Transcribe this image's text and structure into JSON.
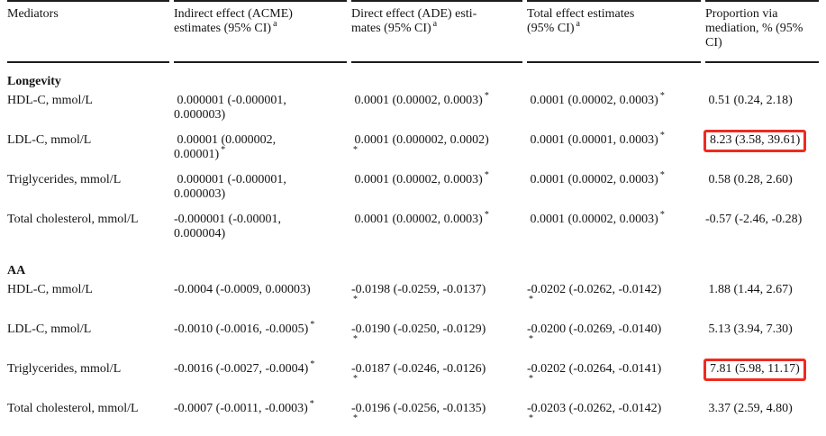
{
  "table": {
    "significance_marker": "*",
    "highlight_color": "#ee2b1f",
    "columns": [
      {
        "key": "mediators",
        "label": "Mediators",
        "footnote": ""
      },
      {
        "key": "indirect-effect",
        "label": "Indirect effect (ACME)\nestimates (95% CI)",
        "footnote": "a"
      },
      {
        "key": "direct-effect",
        "label": "Direct effect (ADE) esti-\nmates (95% CI)",
        "footnote": "a"
      },
      {
        "key": "total-effect",
        "label": "Total effect estimates\n(95% CI)",
        "footnote": "a"
      },
      {
        "key": "proportion",
        "label": "Proportion via\nmediation, % (95%\nCI)",
        "footnote": ""
      }
    ],
    "cell_keys": [
      "acme",
      "ade",
      "total",
      "proportion"
    ],
    "sections": [
      {
        "header": "Longevity",
        "rows": [
          {
            "mediator": "HDL-C, mmol/L",
            "cells": [
              {
                "text": " 0.000001 (-0.000001,\n0.000003)",
                "star": false,
                "star_wrapped": false,
                "highlighted": false
              },
              {
                "text": " 0.0001 (0.00002, 0.0003)",
                "star": true,
                "star_wrapped": false,
                "highlighted": false
              },
              {
                "text": " 0.0001 (0.00002, 0.0003)",
                "star": true,
                "star_wrapped": false,
                "highlighted": false
              },
              {
                "text": " 0.51 (0.24, 2.18)",
                "star": false,
                "star_wrapped": false,
                "highlighted": false
              }
            ]
          },
          {
            "mediator": "LDL-C, mmol/L",
            "cells": [
              {
                "text": " 0.00001 (0.000002,\n0.00001)",
                "star": true,
                "star_wrapped": false,
                "highlighted": false
              },
              {
                "text": " 0.0001 (0.000002, 0.0002)",
                "star": true,
                "star_wrapped": true,
                "highlighted": false
              },
              {
                "text": " 0.0001 (0.00001, 0.0003)",
                "star": true,
                "star_wrapped": false,
                "highlighted": false
              },
              {
                "text": "8.23 (3.58, 39.61)",
                "star": false,
                "star_wrapped": false,
                "highlighted": true
              }
            ]
          },
          {
            "mediator": "Triglycerides, mmol/L",
            "cells": [
              {
                "text": " 0.000001 (-0.000001,\n0.000003)",
                "star": false,
                "star_wrapped": false,
                "highlighted": false
              },
              {
                "text": " 0.0001 (0.00002, 0.0003)",
                "star": true,
                "star_wrapped": false,
                "highlighted": false
              },
              {
                "text": " 0.0001 (0.00002, 0.0003)",
                "star": true,
                "star_wrapped": false,
                "highlighted": false
              },
              {
                "text": " 0.58 (0.28, 2.60)",
                "star": false,
                "star_wrapped": false,
                "highlighted": false
              }
            ]
          },
          {
            "mediator": "Total cholesterol, mmol/L",
            "cells": [
              {
                "text": "-0.000001 (-0.00001,\n0.000004)",
                "star": false,
                "star_wrapped": false,
                "highlighted": false
              },
              {
                "text": " 0.0001 (0.00002, 0.0003)",
                "star": true,
                "star_wrapped": false,
                "highlighted": false
              },
              {
                "text": " 0.0001 (0.00002, 0.0003)",
                "star": true,
                "star_wrapped": false,
                "highlighted": false
              },
              {
                "text": "-0.57 (-2.46, -0.28)",
                "star": false,
                "star_wrapped": false,
                "highlighted": false
              }
            ]
          }
        ]
      },
      {
        "header": "AA",
        "rows": [
          {
            "mediator": "HDL-C, mmol/L",
            "cells": [
              {
                "text": "-0.0004 (-0.0009, 0.00003)",
                "star": false,
                "star_wrapped": false,
                "highlighted": false
              },
              {
                "text": "-0.0198 (-0.0259, -0.0137)",
                "star": true,
                "star_wrapped": true,
                "highlighted": false
              },
              {
                "text": "-0.0202 (-0.0262, -0.0142)",
                "star": true,
                "star_wrapped": true,
                "highlighted": false
              },
              {
                "text": " 1.88 (1.44, 2.67)",
                "star": false,
                "star_wrapped": false,
                "highlighted": false
              }
            ]
          },
          {
            "mediator": "LDL-C, mmol/L",
            "cells": [
              {
                "text": "-0.0010 (-0.0016, -0.0005)",
                "star": true,
                "star_wrapped": false,
                "highlighted": false
              },
              {
                "text": "-0.0190 (-0.0250, -0.0129)",
                "star": true,
                "star_wrapped": true,
                "highlighted": false
              },
              {
                "text": "-0.0200 (-0.0269, -0.0140)",
                "star": true,
                "star_wrapped": true,
                "highlighted": false
              },
              {
                "text": " 5.13 (3.94, 7.30)",
                "star": false,
                "star_wrapped": false,
                "highlighted": false
              }
            ]
          },
          {
            "mediator": "Triglycerides, mmol/L",
            "cells": [
              {
                "text": "-0.0016 (-0.0027, -0.0004)",
                "star": true,
                "star_wrapped": false,
                "highlighted": false
              },
              {
                "text": "-0.0187 (-0.0246, -0.0126)",
                "star": true,
                "star_wrapped": true,
                "highlighted": false
              },
              {
                "text": "-0.0202 (-0.0264, -0.0141)",
                "star": true,
                "star_wrapped": true,
                "highlighted": false
              },
              {
                "text": "7.81 (5.98, 11.17)",
                "star": false,
                "star_wrapped": false,
                "highlighted": true
              }
            ]
          },
          {
            "mediator": "Total cholesterol, mmol/L",
            "cells": [
              {
                "text": "-0.0007 (-0.0011, -0.0003)",
                "star": true,
                "star_wrapped": false,
                "highlighted": false
              },
              {
                "text": "-0.0196 (-0.0256, -0.0135)",
                "star": true,
                "star_wrapped": true,
                "highlighted": false
              },
              {
                "text": "-0.0203 (-0.0262, -0.0142)",
                "star": true,
                "star_wrapped": true,
                "highlighted": false
              },
              {
                "text": " 3.37 (2.59, 4.80)",
                "star": false,
                "star_wrapped": false,
                "highlighted": false
              }
            ]
          }
        ]
      }
    ]
  }
}
